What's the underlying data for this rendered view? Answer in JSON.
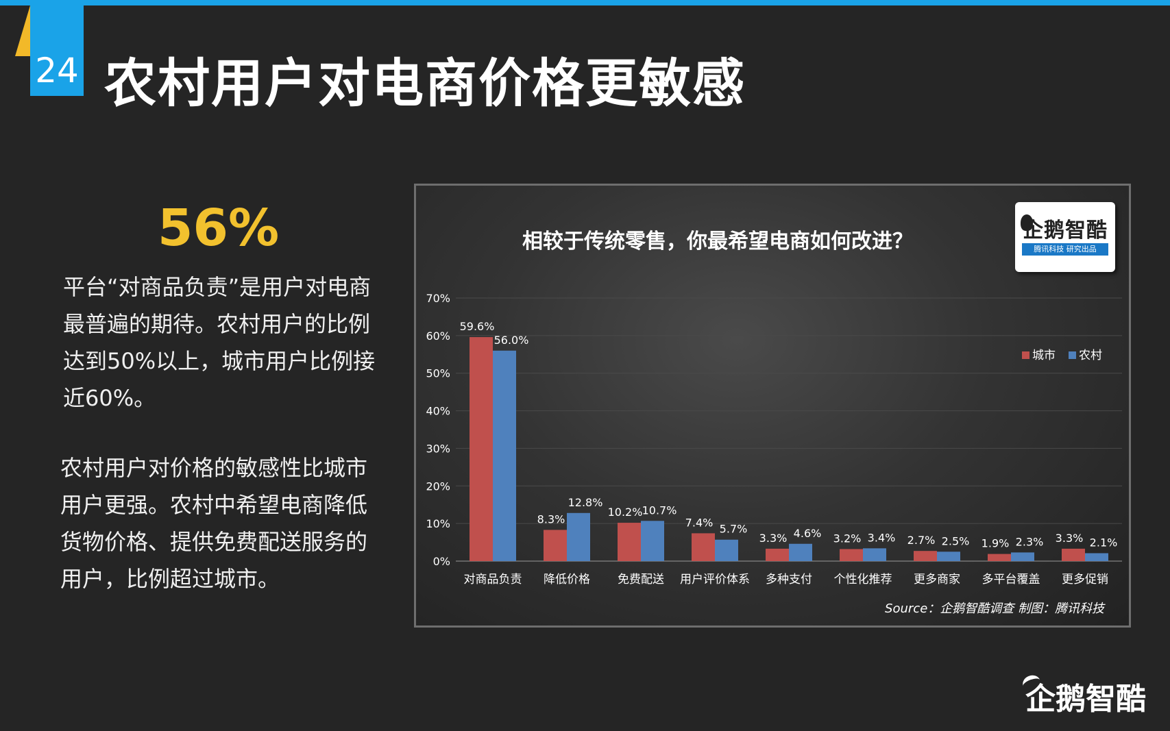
{
  "page": {
    "number": "24",
    "title": "农村用户对电商价格更敏感"
  },
  "left": {
    "stat": "56%",
    "para1": "平台“对商品负责”是用户对电商最普遍的期待。农村用户的比例达到50%以上，城市用户比例接近60%。",
    "para2": "农村用户对价格的敏感性比城市用户更强。农村中希望电商降低货物价格、提供免费配送服务的用户，比例超过城市。"
  },
  "logo": {
    "name": "企鹅智酷",
    "sub": "腾讯科技  研究出品"
  },
  "brand": "企鹅智酷",
  "chart_data": {
    "type": "bar",
    "title": "相较于传统零售，你最希望电商如何改进？",
    "categories": [
      "对商品负责",
      "降低价格",
      "免费配送",
      "用户评价体系",
      "多种支付",
      "个性化推荐",
      "更多商家",
      "多平台覆盖",
      "更多促销"
    ],
    "series": [
      {
        "name": "城市",
        "color": "#c0504d",
        "values": [
          59.6,
          8.3,
          10.2,
          7.4,
          3.3,
          3.2,
          2.7,
          1.9,
          3.3
        ],
        "labels": [
          "59.6%",
          "8.3%",
          "10.2%",
          "7.4%",
          "3.3%",
          "3.2%",
          "2.7%",
          "1.9%",
          "3.3%"
        ]
      },
      {
        "name": "农村",
        "color": "#4f81bd",
        "values": [
          56.0,
          12.8,
          10.7,
          5.7,
          4.6,
          3.4,
          2.5,
          2.3,
          2.1
        ],
        "labels": [
          "56.0%",
          "12.8%",
          "10.7%",
          "5.7%",
          "4.6%",
          "3.4%",
          "2.5%",
          "2.3%",
          "2.1%"
        ]
      }
    ],
    "yticks": [
      "0%",
      "10%",
      "20%",
      "30%",
      "40%",
      "50%",
      "60%",
      "70%"
    ],
    "ylim": [
      0,
      70
    ],
    "legend": "right",
    "grid": true,
    "source": "Source：企鹅智酷调查  制图：腾讯科技"
  }
}
